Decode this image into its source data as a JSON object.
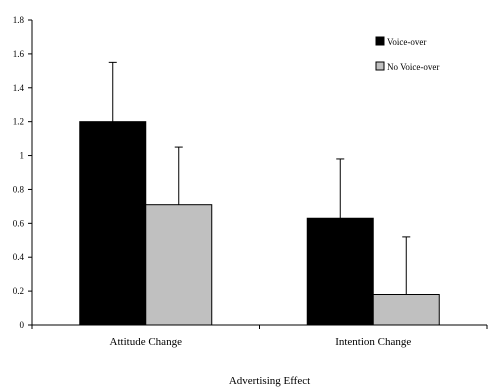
{
  "chart_data": {
    "type": "bar",
    "categories": [
      "Attitude Change",
      "Intention Change"
    ],
    "series": [
      {
        "name": "Voice-over",
        "color": "#000000",
        "values": [
          1.2,
          0.63
        ],
        "error": [
          0.35,
          0.35
        ]
      },
      {
        "name": "No Voice-over",
        "color": "#c0c0c0",
        "values": [
          0.71,
          0.18
        ],
        "error": [
          0.34,
          0.34
        ]
      }
    ],
    "xlabel": "Advertising Effect",
    "ylabel": "",
    "ylim": [
      0,
      1.8
    ],
    "yticks": [
      "0",
      "0.2",
      "0.4",
      "0.6",
      "0.8",
      "1",
      "1.2",
      "1.4",
      "1.6",
      "1.8"
    ],
    "grid": false,
    "legend_position": "top-right"
  }
}
